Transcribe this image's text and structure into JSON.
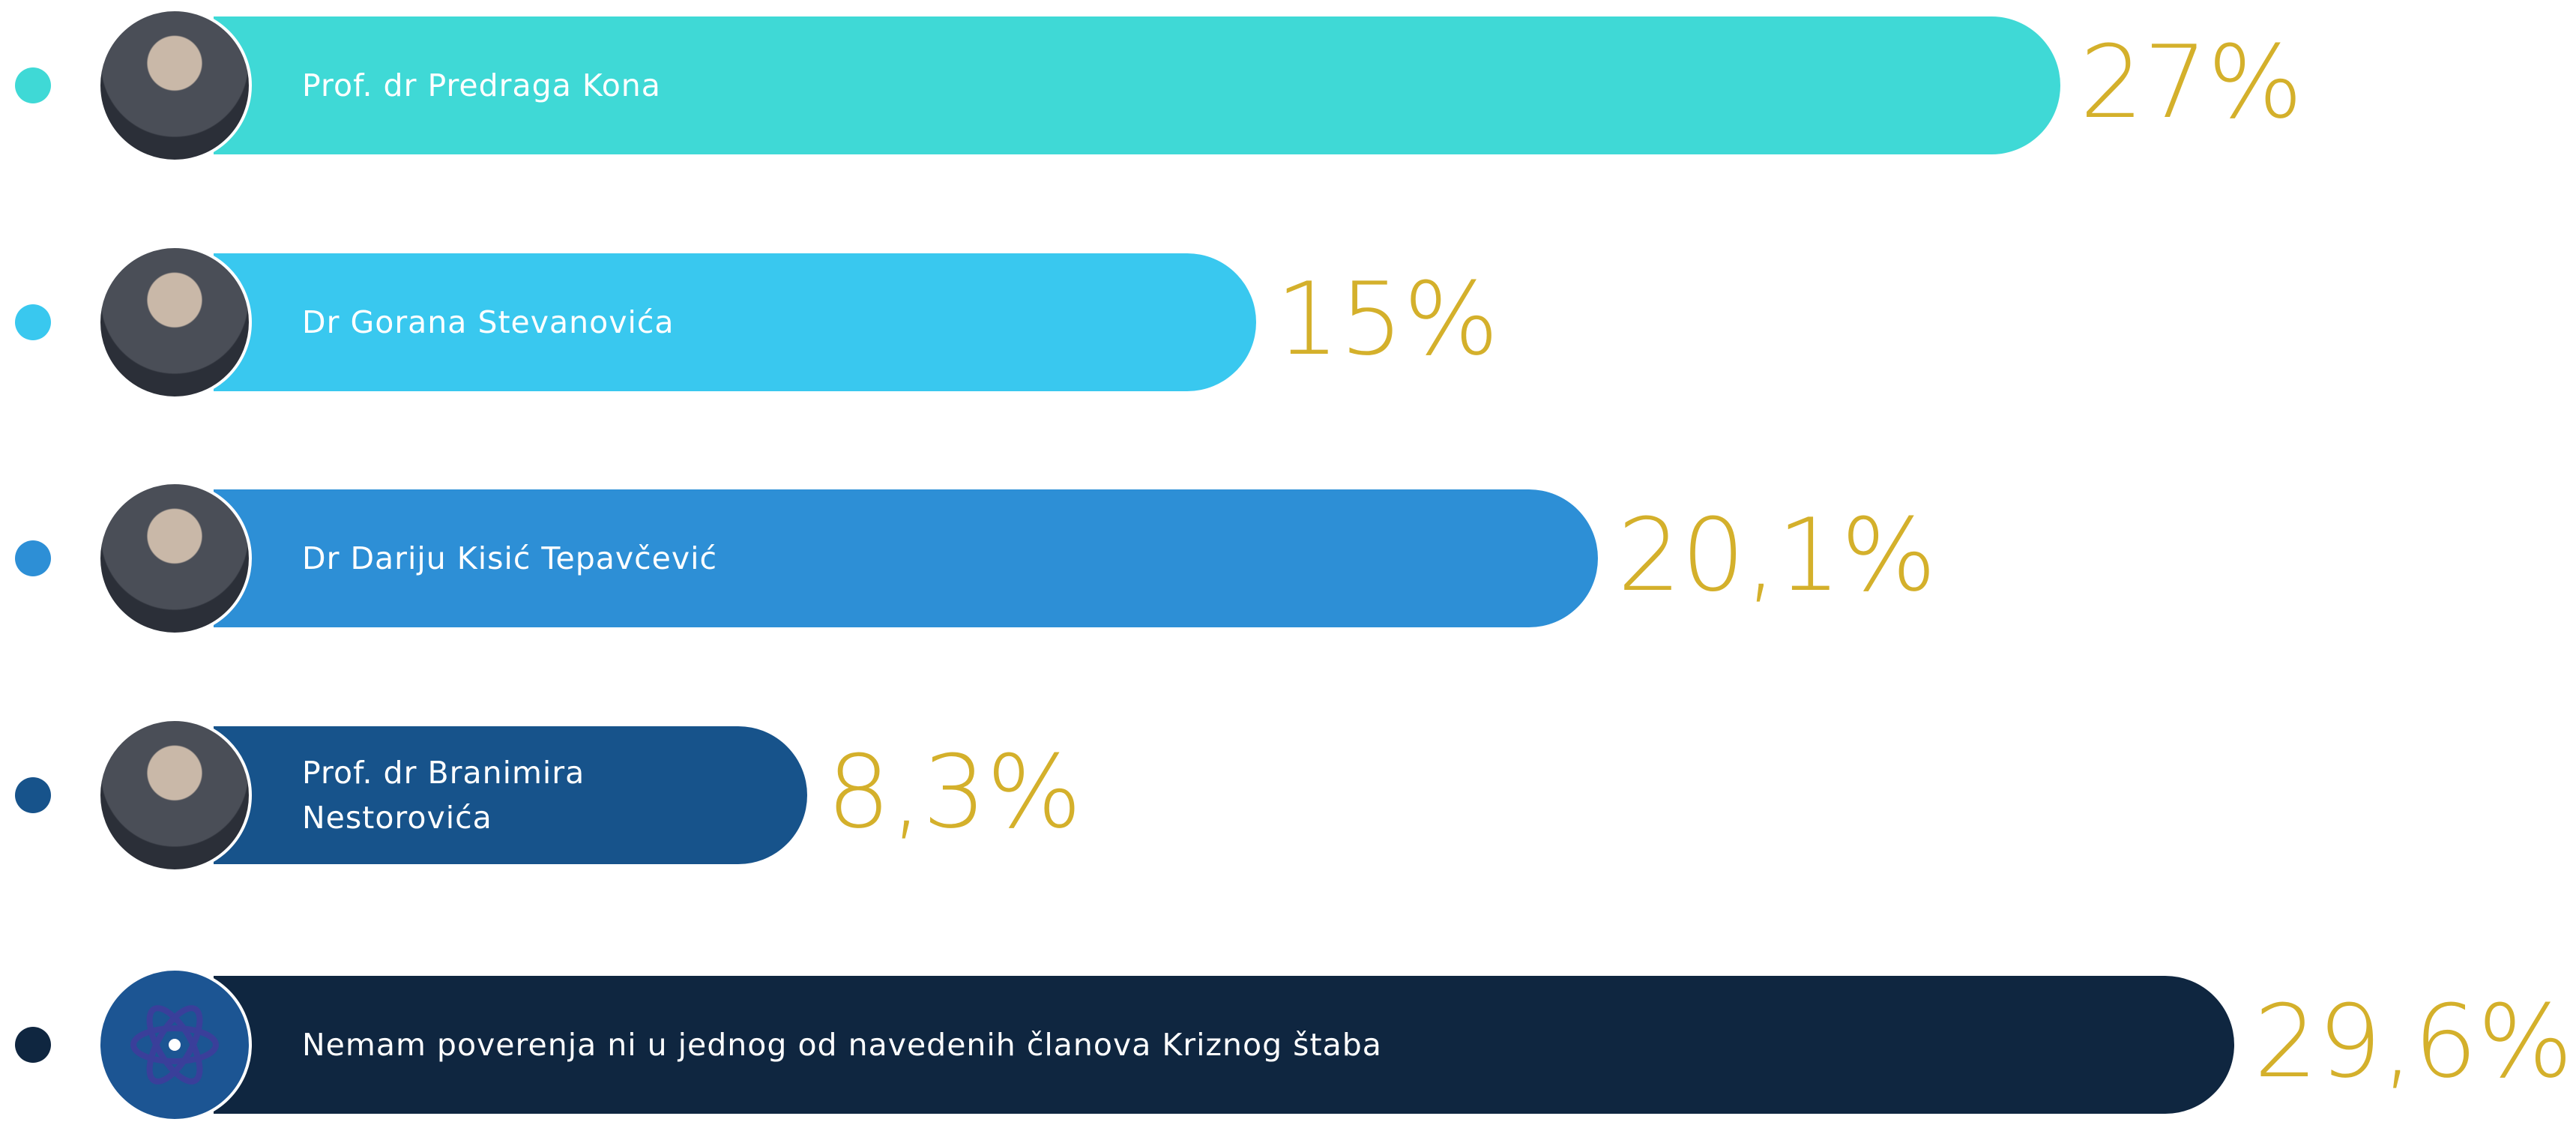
{
  "chart_data": {
    "type": "bar",
    "orientation": "horizontal",
    "categories": [
      "Prof. dr Predraga Kona",
      "Dr Gorana Stevanovića",
      "Dr Dariju Kisić Tepavčević",
      "Prof. dr Branimira Nestorovića",
      "Nemam poverenja ni u jednog od navedenih članova Kriznog štaba"
    ],
    "values": [
      27,
      15,
      20.1,
      8.3,
      29.6
    ],
    "value_labels": [
      "27%",
      "15%",
      "20,1%",
      "8,3%",
      "29,6%"
    ],
    "colors": [
      "#3fd9d6",
      "#39c8ef",
      "#2d8fd6",
      "#17538b",
      "#0f2640"
    ],
    "value_label_color": "#d4b02b"
  }
}
